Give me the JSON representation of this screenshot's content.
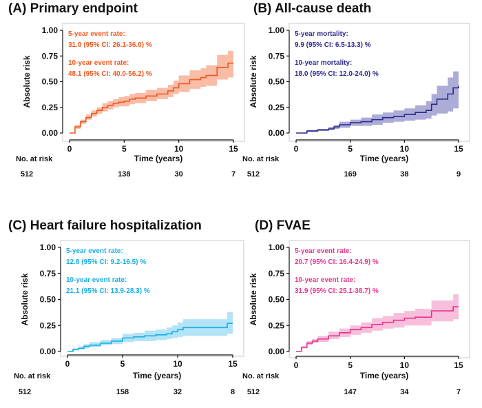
{
  "chart_data": [
    {
      "type": "line",
      "title": "(A) Primary endpoint",
      "xlabel": "Time (years)",
      "ylabel": "Absolute risk",
      "color": "#f0581e",
      "band_color": "#f6a68a",
      "xlim": [
        0,
        15
      ],
      "ylim": [
        0,
        1
      ],
      "xticks": [
        "0",
        "5",
        "10",
        "15"
      ],
      "yticks": [
        "0.00",
        "0.25",
        "0.50",
        "0.75",
        "1.00"
      ],
      "annotation": {
        "line1_label": "5-year event rate:",
        "line1_value": "31.0 (95% CI: 26.1-36.0) %",
        "line2_label": "10-year event rate:",
        "line2_value": "48.1 (95% CI: 40.0-56.2) %"
      },
      "risk_label": "No. at risk",
      "risk_numbers": [
        "512",
        "138",
        "30",
        "7"
      ],
      "series": {
        "x": [
          0,
          0.5,
          1,
          1.5,
          2,
          2.5,
          3,
          3.5,
          4,
          4.5,
          5,
          5.5,
          6,
          7,
          8,
          9,
          9.5,
          10,
          10.3,
          11,
          11.5,
          12,
          12.5,
          13,
          13.5,
          14,
          14.5,
          15
        ],
        "y": [
          0,
          0.06,
          0.11,
          0.15,
          0.19,
          0.22,
          0.25,
          0.27,
          0.29,
          0.3,
          0.31,
          0.33,
          0.34,
          0.36,
          0.38,
          0.41,
          0.44,
          0.48,
          0.48,
          0.52,
          0.52,
          0.54,
          0.56,
          0.56,
          0.64,
          0.64,
          0.68,
          0.68
        ],
        "lower": [
          0,
          0.04,
          0.09,
          0.13,
          0.16,
          0.19,
          0.21,
          0.23,
          0.25,
          0.26,
          0.26,
          0.28,
          0.29,
          0.31,
          0.33,
          0.35,
          0.38,
          0.4,
          0.4,
          0.43,
          0.43,
          0.45,
          0.46,
          0.46,
          0.52,
          0.52,
          0.54,
          0.54
        ],
        "upper": [
          0,
          0.08,
          0.13,
          0.18,
          0.22,
          0.25,
          0.29,
          0.31,
          0.33,
          0.35,
          0.36,
          0.38,
          0.39,
          0.42,
          0.44,
          0.47,
          0.51,
          0.56,
          0.56,
          0.61,
          0.61,
          0.63,
          0.66,
          0.66,
          0.76,
          0.76,
          0.8,
          0.8
        ]
      }
    },
    {
      "type": "line",
      "title": "(B) All-cause death",
      "xlabel": "Time (years)",
      "ylabel": "Absolute risk",
      "color": "#2b2a8c",
      "band_color": "#9090c9",
      "xlim": [
        0,
        15
      ],
      "ylim": [
        0,
        1
      ],
      "xticks": [
        "0",
        "5",
        "10",
        "15"
      ],
      "yticks": [
        "0.00",
        "0.25",
        "0.50",
        "0.75",
        "1.00"
      ],
      "annotation": {
        "line1_label": "5-year mortality:",
        "line1_value": "9.9 (95% CI: 6.5-13.3) %",
        "line2_label": "10-year mortality:",
        "line2_value": "18.0 (95% CI: 12.0-24.0) %"
      },
      "risk_label": "No. at risk",
      "risk_numbers": [
        "512",
        "169",
        "38",
        "9"
      ],
      "series": {
        "x": [
          0,
          1,
          2,
          3,
          3.5,
          4,
          5,
          6,
          7,
          8,
          9,
          10,
          11,
          12,
          12.5,
          13,
          14,
          14.5,
          15
        ],
        "y": [
          0,
          0.02,
          0.03,
          0.04,
          0.06,
          0.08,
          0.1,
          0.11,
          0.13,
          0.15,
          0.16,
          0.18,
          0.2,
          0.22,
          0.28,
          0.33,
          0.38,
          0.44,
          0.46
        ],
        "lower": [
          0,
          0.01,
          0.02,
          0.03,
          0.04,
          0.05,
          0.07,
          0.07,
          0.08,
          0.1,
          0.11,
          0.12,
          0.13,
          0.14,
          0.17,
          0.19,
          0.21,
          0.24,
          0.26
        ],
        "upper": [
          0,
          0.03,
          0.04,
          0.06,
          0.08,
          0.11,
          0.13,
          0.15,
          0.18,
          0.2,
          0.22,
          0.24,
          0.27,
          0.31,
          0.38,
          0.46,
          0.54,
          0.6,
          0.62
        ]
      }
    },
    {
      "type": "line",
      "title": "(C) Heart failure hospitalization",
      "xlabel": "Time (years)",
      "ylabel": "Absolute risk",
      "color": "#18aee6",
      "band_color": "#9ad9f3",
      "xlim": [
        0,
        15
      ],
      "ylim": [
        0,
        1
      ],
      "xticks": [
        "0",
        "5",
        "10",
        "15"
      ],
      "yticks": [
        "0.00",
        "0.25",
        "0.50",
        "0.75",
        "1.00"
      ],
      "annotation": {
        "line1_label": "5-year event rate:",
        "line1_value": "12.8 (95% CI: 9.2-16.5) %",
        "line2_label": "10-year event rate:",
        "line2_value": "21.1 (95% CI: 13.9-28.3) %"
      },
      "risk_label": "No. at risk",
      "risk_numbers": [
        "512",
        "158",
        "32",
        "8"
      ],
      "series": {
        "x": [
          0,
          0.5,
          1,
          1.5,
          2,
          3,
          4,
          5,
          6,
          7,
          8,
          9,
          9.5,
          10,
          10.5,
          12,
          13,
          14,
          14.5,
          15
        ],
        "y": [
          0,
          0.02,
          0.03,
          0.05,
          0.06,
          0.08,
          0.1,
          0.13,
          0.14,
          0.15,
          0.16,
          0.17,
          0.19,
          0.21,
          0.23,
          0.23,
          0.23,
          0.23,
          0.27,
          0.27
        ],
        "lower": [
          0,
          0.01,
          0.02,
          0.03,
          0.04,
          0.06,
          0.07,
          0.09,
          0.1,
          0.1,
          0.11,
          0.12,
          0.13,
          0.14,
          0.15,
          0.15,
          0.15,
          0.15,
          0.17,
          0.17
        ],
        "upper": [
          0,
          0.03,
          0.05,
          0.07,
          0.09,
          0.11,
          0.13,
          0.17,
          0.18,
          0.2,
          0.21,
          0.23,
          0.25,
          0.28,
          0.31,
          0.31,
          0.31,
          0.31,
          0.38,
          0.38
        ]
      }
    },
    {
      "type": "line",
      "title": "(D) FVAE",
      "xlabel": "Time (years)",
      "ylabel": "Absolute risk",
      "color": "#e8338e",
      "band_color": "#f4a9cf",
      "xlim": [
        0,
        15
      ],
      "ylim": [
        0,
        1
      ],
      "xticks": [
        "0",
        "5",
        "10",
        "15"
      ],
      "yticks": [
        "0.00",
        "0.25",
        "0.50",
        "0.75",
        "1.00"
      ],
      "annotation": {
        "line1_label": "5-year event rate:",
        "line1_value": "20.7 (95% CI: 16.4-24.9) %",
        "line2_label": "10-year event rate:",
        "line2_value": "31.9 (95% CI: 25.1-38.7) %"
      },
      "risk_label": "No. at risk",
      "risk_numbers": [
        "512",
        "147",
        "34",
        "7"
      ],
      "series": {
        "x": [
          0,
          0.5,
          1,
          1.5,
          2,
          3,
          4,
          5,
          6,
          7,
          8,
          9,
          10,
          11,
          12,
          12.5,
          13,
          14,
          14.5,
          15
        ],
        "y": [
          0,
          0.04,
          0.08,
          0.1,
          0.12,
          0.15,
          0.18,
          0.21,
          0.23,
          0.26,
          0.28,
          0.3,
          0.32,
          0.33,
          0.33,
          0.39,
          0.39,
          0.39,
          0.43,
          0.43
        ],
        "lower": [
          0,
          0.03,
          0.06,
          0.08,
          0.09,
          0.12,
          0.14,
          0.16,
          0.18,
          0.2,
          0.22,
          0.23,
          0.25,
          0.25,
          0.25,
          0.29,
          0.29,
          0.29,
          0.31,
          0.31
        ],
        "upper": [
          0,
          0.05,
          0.1,
          0.12,
          0.15,
          0.19,
          0.22,
          0.25,
          0.28,
          0.32,
          0.34,
          0.37,
          0.39,
          0.41,
          0.41,
          0.49,
          0.49,
          0.49,
          0.55,
          0.55
        ]
      }
    }
  ]
}
